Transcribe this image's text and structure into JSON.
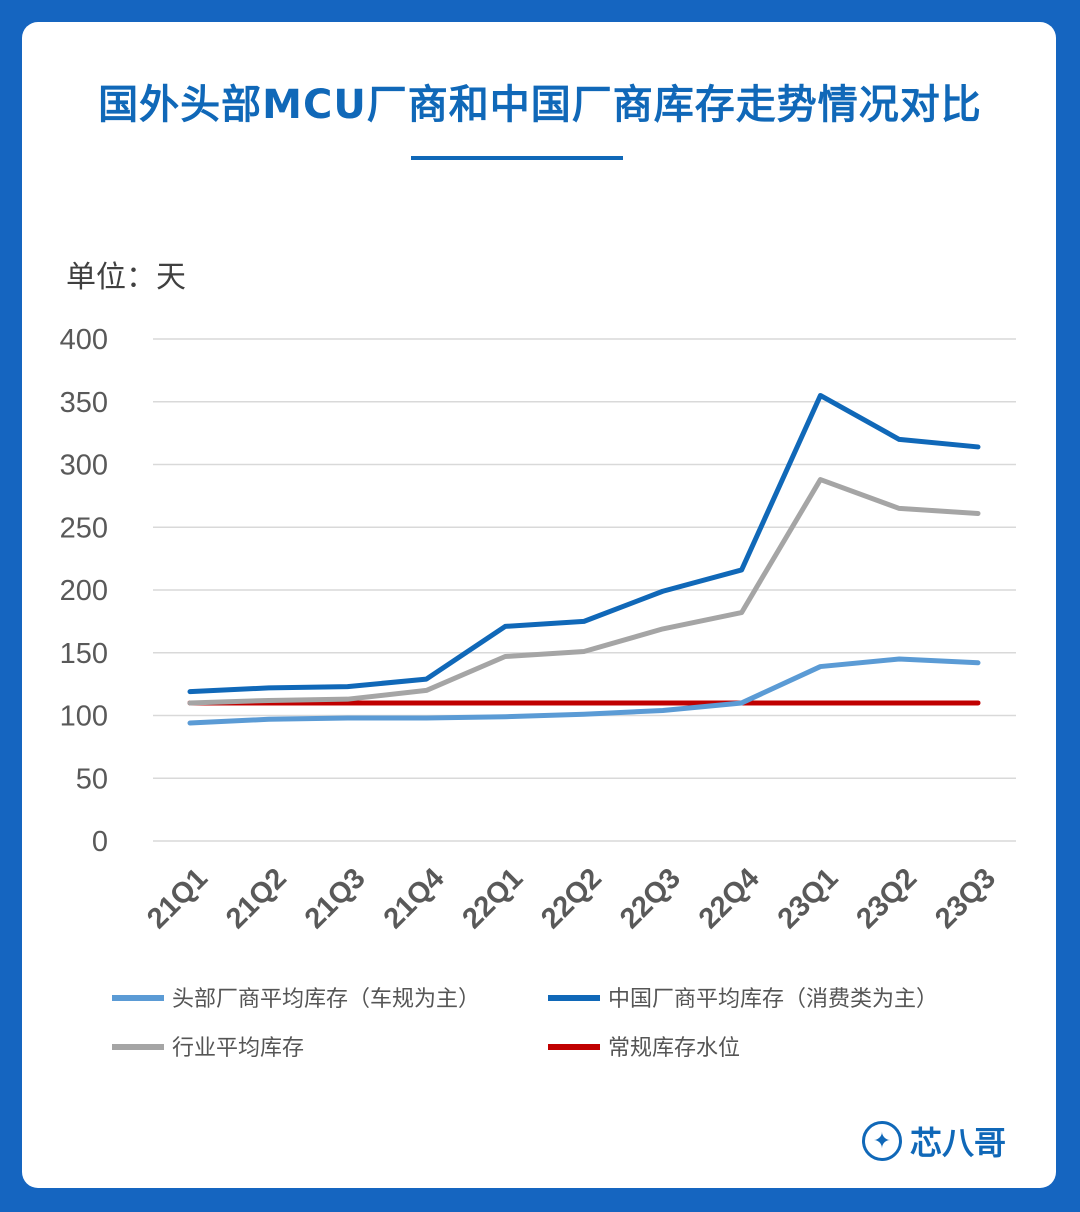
{
  "header": {
    "title": "国外头部MCU厂商和中国厂商库存走势情况对比"
  },
  "brand": {
    "name": "芯八哥",
    "icon": "kingfisher-logo-icon"
  },
  "chart_data": {
    "type": "line",
    "unit_label": "单位：天",
    "categories": [
      "21Q1",
      "21Q2",
      "21Q3",
      "21Q4",
      "22Q1",
      "22Q2",
      "22Q3",
      "22Q4",
      "23Q1",
      "23Q2",
      "23Q3"
    ],
    "y_ticks": [
      0,
      50,
      100,
      150,
      200,
      250,
      300,
      350,
      400
    ],
    "ylim": [
      0,
      400
    ],
    "grid": true,
    "legend_position": "bottom",
    "series": [
      {
        "name": "头部厂商平均库存（车规为主）",
        "color": "#5b9bd5",
        "values": [
          94,
          97,
          98,
          98,
          99,
          101,
          104,
          110,
          139,
          145,
          142
        ]
      },
      {
        "name": "中国厂商平均库存（消费类为主）",
        "color": "#1068b8",
        "values": [
          119,
          122,
          123,
          129,
          171,
          175,
          199,
          216,
          355,
          320,
          314
        ]
      },
      {
        "name": "行业平均库存",
        "color": "#a5a5a5",
        "values": [
          110,
          112,
          113,
          120,
          147,
          151,
          169,
          182,
          288,
          265,
          261
        ]
      },
      {
        "name": "常规库存水位",
        "color": "#c00000",
        "values": [
          110,
          110,
          110,
          110,
          110,
          110,
          110,
          110,
          110,
          110,
          110
        ]
      }
    ]
  }
}
